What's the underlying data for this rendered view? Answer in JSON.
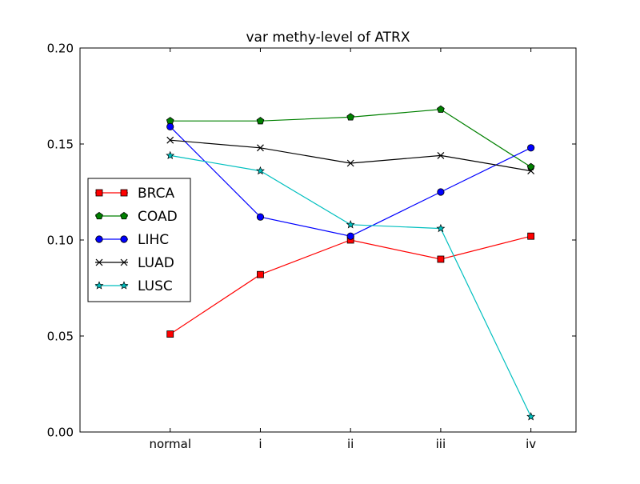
{
  "chart_data": {
    "type": "line",
    "title": "var methy-level of ATRX",
    "xlabel": "",
    "ylabel": "",
    "categories": [
      "normal",
      "i",
      "ii",
      "iii",
      "iv"
    ],
    "xlim": [
      -1,
      4.5
    ],
    "ylim": [
      0.0,
      0.2
    ],
    "yticks": [
      0.0,
      0.05,
      0.1,
      0.15,
      0.2
    ],
    "ytick_labels": [
      "0.00",
      "0.05",
      "0.10",
      "0.15",
      "0.20"
    ],
    "grid": false,
    "legend_position": "center-left",
    "series": [
      {
        "name": "BRCA",
        "color": "#ff0000",
        "marker": "square",
        "values": [
          0.051,
          0.082,
          0.1,
          0.09,
          0.102
        ]
      },
      {
        "name": "COAD",
        "color": "#008000",
        "marker": "pentagon",
        "values": [
          0.162,
          0.162,
          0.164,
          0.168,
          0.138
        ]
      },
      {
        "name": "LIHC",
        "color": "#0000ff",
        "marker": "circle",
        "values": [
          0.159,
          0.112,
          0.102,
          0.125,
          0.148
        ]
      },
      {
        "name": "LUAD",
        "color": "#000000",
        "marker": "x",
        "values": [
          0.152,
          0.148,
          0.14,
          0.144,
          0.136
        ]
      },
      {
        "name": "LUSC",
        "color": "#00bfbf",
        "marker": "star",
        "values": [
          0.144,
          0.136,
          0.108,
          0.106,
          0.008
        ]
      }
    ]
  }
}
